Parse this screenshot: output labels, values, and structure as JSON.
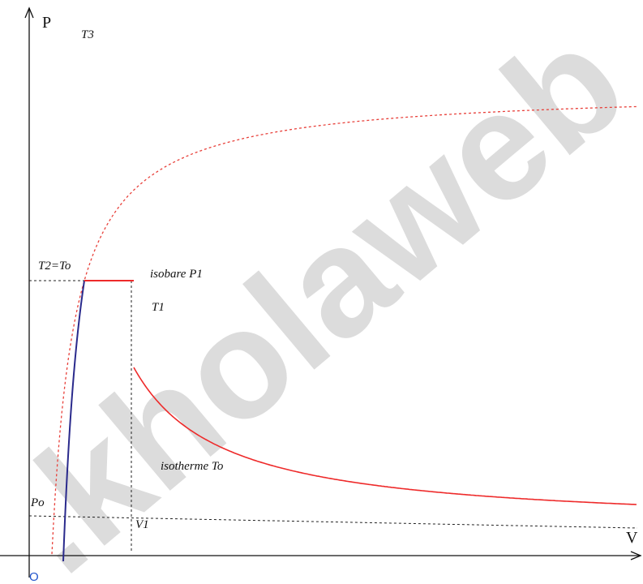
{
  "colors": {
    "axis": "#111111",
    "guide": "#222222",
    "isotherm_To": "#e8403a",
    "isobar_and_T1": "#ee2a2a",
    "T3_curve": "#2a2a8c",
    "watermark": "#dcdcdc",
    "origin_label": "#2255cc"
  },
  "axes": {
    "y_name": "P",
    "x_name": "V",
    "origin": "O"
  },
  "labels": {
    "T3": "T3",
    "T2": "T2=To",
    "isobar": "isobare P1",
    "T1": "T1",
    "isotherm": "isotherme To",
    "Po": "Po",
    "V1": "V1"
  },
  "watermark": {
    "text": ".kholaweb"
  }
}
